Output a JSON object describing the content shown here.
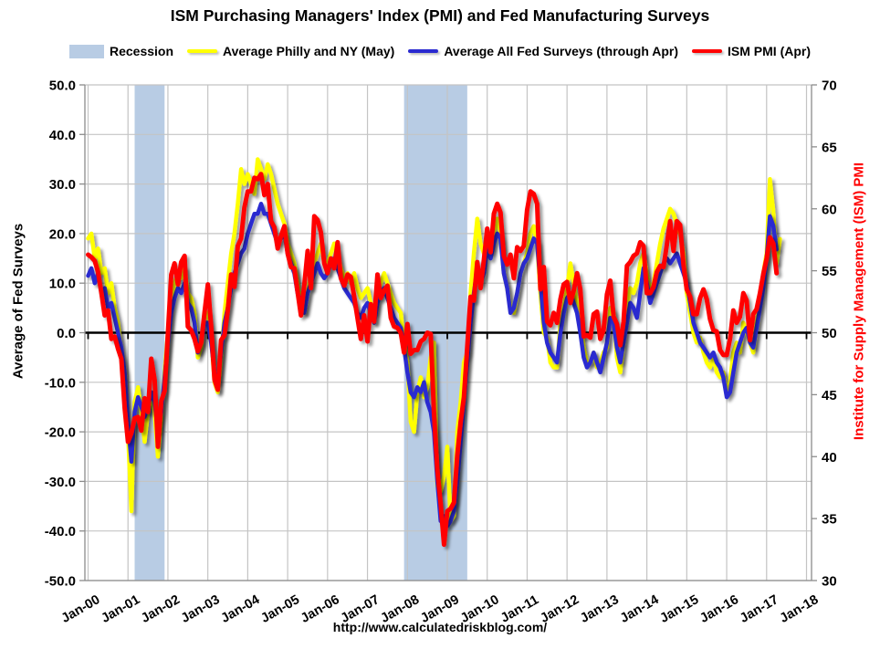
{
  "page": {
    "title": "ISM Purchasing Managers' Index (PMI) and Fed Manufacturing Surveys",
    "footer_url": "http://www.calculatedriskblog.com/"
  },
  "chart_data": {
    "type": "line",
    "title": "ISM Purchasing Managers' Index (PMI) and Fed Manufacturing Surveys",
    "legend_position": "top",
    "grid": true,
    "x_axis": {
      "months_start": "Jan-2000",
      "months_total": 217,
      "tick_labels": [
        "Jan-00",
        "Jan-01",
        "Jan-02",
        "Jan-03",
        "Jan-04",
        "Jan-05",
        "Jan-06",
        "Jan-07",
        "Jan-08",
        "Jan-09",
        "Jan-10",
        "Jan-11",
        "Jan-12",
        "Jan-13",
        "Jan-14",
        "Jan-15",
        "Jan-16",
        "Jan-17",
        "Jan-18"
      ]
    },
    "left_axis": {
      "label": "Average of Fed Surveys",
      "min": -50,
      "max": 50,
      "tick_step": 10,
      "tick_labels": [
        "50.0",
        "40.0",
        "30.0",
        "20.0",
        "10.0",
        "0.0",
        "-10.0",
        "-20.0",
        "-30.0",
        "-40.0",
        "-50.0"
      ]
    },
    "right_axis": {
      "label": "Institute for Supply Management (ISM) PMI",
      "label_color": "#ff0000",
      "min": 30,
      "max": 70,
      "tick_step": 5,
      "tick_labels": [
        "70",
        "65",
        "60",
        "55",
        "50",
        "45",
        "40",
        "35",
        "30"
      ]
    },
    "recessions": {
      "label": "Recession",
      "color": "#b8cce4",
      "bands": [
        {
          "name": "2001 recession",
          "start_index": 14,
          "end_index": 23
        },
        {
          "name": "2007-2009 recession",
          "start_index": 95,
          "end_index": 114
        }
      ]
    },
    "series": [
      {
        "name": "Average Philly and NY (May)",
        "color": "#ffff00",
        "axis": "left",
        "stroke_width": 4.5,
        "values": [
          19,
          20,
          15,
          17,
          12,
          13,
          8,
          10,
          5,
          2,
          -4,
          -8,
          -20,
          -36,
          -14,
          -11,
          -16,
          -22,
          -16,
          -12,
          -16,
          -25,
          -17,
          -8,
          0,
          6,
          10,
          12,
          11,
          13,
          8,
          7,
          4,
          -5,
          -3,
          4,
          4,
          -1,
          -10,
          -12,
          -5,
          4,
          10,
          16,
          20,
          26,
          33,
          30,
          32,
          30,
          28,
          35,
          33,
          31,
          34,
          32,
          29,
          26,
          24,
          22,
          18,
          16,
          14,
          10,
          6,
          4,
          8,
          12,
          14,
          16,
          18,
          14,
          14,
          16,
          18,
          16,
          13,
          11,
          12,
          10,
          12,
          9,
          7,
          8,
          9,
          6,
          4,
          8,
          10,
          12,
          10,
          8,
          6,
          5,
          4,
          -2,
          -6,
          -18,
          -20,
          -12,
          -9,
          -13,
          -11,
          -5,
          -2,
          -31,
          -32,
          -29,
          -23,
          -38,
          -37,
          -20,
          -14,
          -6,
          -4,
          8,
          16,
          23,
          18,
          16,
          18,
          17,
          20,
          23,
          20,
          12,
          9,
          5,
          4,
          8,
          12,
          14,
          16,
          20,
          21.5,
          18,
          8,
          0,
          -1,
          -6,
          -7,
          -7,
          2,
          5,
          9,
          14,
          10,
          6,
          3,
          -3,
          -6,
          -6,
          -4,
          -7,
          -6,
          -4,
          -3,
          5,
          4,
          -5,
          -8,
          -2,
          5,
          9,
          8,
          10,
          14,
          16,
          12,
          8,
          10,
          14,
          18,
          21,
          23,
          25,
          24,
          22,
          20,
          16,
          8,
          4,
          0,
          -2,
          -1,
          -4,
          -6,
          -7,
          -5,
          -8,
          -9,
          -8,
          -12,
          -10,
          -4,
          -2,
          -4,
          2,
          0,
          -2,
          -4,
          2,
          6,
          12,
          16,
          31,
          24.6,
          14,
          18.9
        ]
      },
      {
        "name": "Average All Fed Surveys (through Apr)",
        "color": "#2a2ad0",
        "axis": "left",
        "stroke_width": 4.5,
        "values": [
          11.5,
          13,
          10,
          12,
          8,
          9,
          5,
          6,
          3,
          0,
          -3,
          -8,
          -18,
          -26,
          -16,
          -13,
          -15,
          -17,
          -15,
          -12,
          -14,
          -20,
          -16,
          -9,
          -2,
          4,
          7,
          9,
          8,
          10,
          6,
          5,
          2,
          -4,
          -2,
          2,
          2,
          -2,
          -8,
          -10,
          -4,
          2,
          5,
          9,
          12,
          14,
          16,
          17,
          20,
          22,
          24,
          24,
          26,
          24,
          24,
          22,
          20,
          18,
          19,
          20,
          16,
          14,
          12,
          8,
          6,
          4,
          8,
          10,
          12,
          14,
          12,
          11,
          12,
          14,
          15,
          13,
          11,
          9,
          8,
          7,
          6,
          4,
          3,
          5,
          6,
          4,
          2,
          6,
          8,
          9,
          7,
          5,
          3,
          2,
          1,
          -3,
          -8,
          -12,
          -13,
          -11,
          -12,
          -10,
          -14,
          -16,
          -20,
          -30,
          -38,
          -37,
          -39,
          -38,
          -36,
          -30,
          -22,
          -14,
          -6,
          2,
          8,
          13,
          10,
          12,
          17,
          15,
          18,
          20,
          19,
          12,
          9,
          4,
          5,
          8,
          12,
          14,
          15,
          17,
          19,
          18,
          10,
          2,
          -2,
          -4,
          -5,
          -6,
          0,
          4,
          7,
          8,
          6,
          4,
          0,
          -5,
          -7,
          -6,
          -4,
          -6,
          -8,
          -5,
          -2,
          3,
          2,
          -3,
          -6,
          -2,
          2,
          6,
          5,
          3,
          8,
          13,
          10,
          6,
          8,
          10,
          12,
          14,
          15,
          14,
          15,
          16,
          14,
          12,
          10,
          6,
          2,
          0,
          -2,
          -3,
          -4,
          -5,
          -4,
          -6,
          -7,
          -9,
          -13,
          -12,
          -8,
          -4,
          -2,
          0,
          1,
          -2,
          -3,
          1,
          5,
          9,
          15,
          23.5,
          21.6,
          16.8
        ]
      },
      {
        "name": "ISM PMI (Apr)",
        "color": "#ff0000",
        "axis": "right",
        "stroke_width": 5,
        "values": [
          56.3,
          56.1,
          55.8,
          54.9,
          53.2,
          51.4,
          51.8,
          49.5,
          49.7,
          48.7,
          47.9,
          43.9,
          41.2,
          41.9,
          43.1,
          43.2,
          42.1,
          44.7,
          43.6,
          47.9,
          46.2,
          40.8,
          44.5,
          45.3,
          49.9,
          54.7,
          55.6,
          53.9,
          55.7,
          56.2,
          50.5,
          50.2,
          49.5,
          48.5,
          49.2,
          51.6,
          53.9,
          50.5,
          46.2,
          45.4,
          49.4,
          49.8,
          51.8,
          54.7,
          53.7,
          57.0,
          57.6,
          60.1,
          61.4,
          61.4,
          62.5,
          62.4,
          62.8,
          61.1,
          62.0,
          59.0,
          58.5,
          56.8,
          57.8,
          58.6,
          56.4,
          55.3,
          55.2,
          53.3,
          51.4,
          53.8,
          56.6,
          53.6,
          59.4,
          59.1,
          58.1,
          55.6,
          54.8,
          56.0,
          55.2,
          57.3,
          54.4,
          53.8,
          54.7,
          54.5,
          52.9,
          51.2,
          49.5,
          51.4,
          49.3,
          52.3,
          50.9,
          54.7,
          52.8,
          53.4,
          53.8,
          51.2,
          50.5,
          50.4,
          50.0,
          48.4,
          50.7,
          48.3,
          48.6,
          48.6,
          49.3,
          49.5,
          50.0,
          49.9,
          43.5,
          38.9,
          36.2,
          32.9,
          35.6,
          35.8,
          36.3,
          40.1,
          42.8,
          44.8,
          48.9,
          52.9,
          52.6,
          55.7,
          53.6,
          55.9,
          58.4,
          56.5,
          59.6,
          60.4,
          59.7,
          56.2,
          55.5,
          56.3,
          54.4,
          56.9,
          56.6,
          57.0,
          59.9,
          61.4,
          61.2,
          60.4,
          53.5,
          55.3,
          50.9,
          50.6,
          51.6,
          50.8,
          52.7,
          53.9,
          54.1,
          52.4,
          53.4,
          54.8,
          53.5,
          49.7,
          49.8,
          49.6,
          51.5,
          51.7,
          49.5,
          50.2,
          53.1,
          54.2,
          51.3,
          50.7,
          49.0,
          50.9,
          55.4,
          55.7,
          56.2,
          56.4,
          57.3,
          57.0,
          53.2,
          53.2,
          53.7,
          54.9,
          55.4,
          55.3,
          57.1,
          59.0,
          56.6,
          59.0,
          58.7,
          55.5,
          53.5,
          52.9,
          51.5,
          51.5,
          52.8,
          53.5,
          52.7,
          51.1,
          50.2,
          50.1,
          48.6,
          48.2,
          48.2,
          49.5,
          51.8,
          50.8,
          51.3,
          53.2,
          52.6,
          49.4,
          51.5,
          51.9,
          53.2,
          54.7,
          56.0,
          57.7,
          57.2,
          54.8
        ]
      }
    ]
  }
}
